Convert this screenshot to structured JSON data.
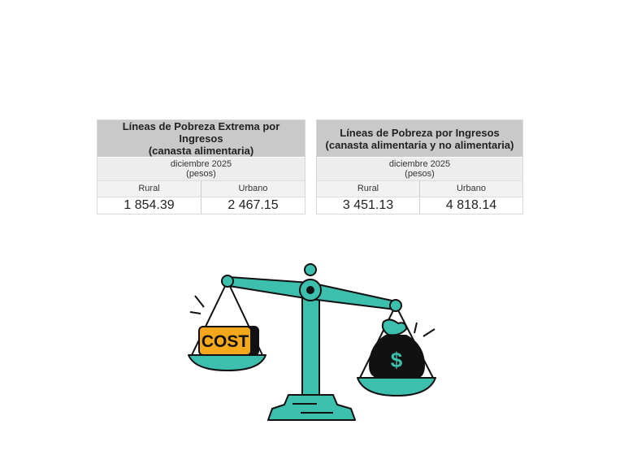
{
  "tables": [
    {
      "title_lines": [
        "Líneas de Pobreza Extrema por",
        "Ingresos",
        "(canasta alimentaria)"
      ],
      "period": "diciembre 2025",
      "unit": "(pesos)",
      "columns": [
        "Rural",
        "Urbano"
      ],
      "values": [
        "1 854.39",
        "2 467.15"
      ]
    },
    {
      "title_lines": [
        "Líneas de Pobreza por Ingresos",
        "(canasta alimentaria y no alimentaria)"
      ],
      "period": "diciembre 2025",
      "unit": "(pesos)",
      "columns": [
        "Rural",
        "Urbano"
      ],
      "values": [
        "3 451.13",
        "4 818.14"
      ]
    }
  ],
  "illustration": {
    "cost_label": "COST",
    "money_symbol": "$",
    "colors": {
      "teal": "#3dbfae",
      "orange": "#f6a81c",
      "outline": "#111111"
    }
  }
}
